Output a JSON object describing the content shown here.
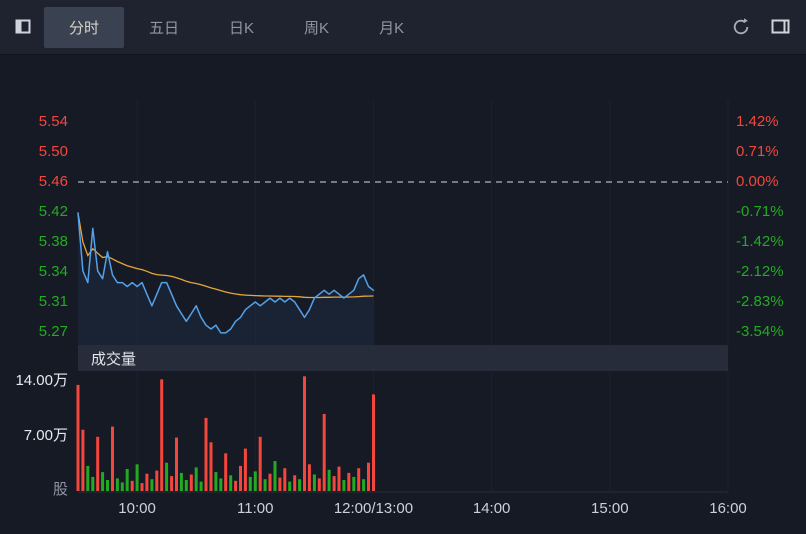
{
  "toolbar": {
    "tabs": [
      {
        "label": "分时",
        "active": true
      },
      {
        "label": "五日",
        "active": false
      },
      {
        "label": "日K",
        "active": false
      },
      {
        "label": "周K",
        "active": false
      },
      {
        "label": "月K",
        "active": false
      }
    ]
  },
  "volume_panel": {
    "title": "成交量"
  },
  "colors": {
    "up": "#f5463d",
    "down": "#22ab22",
    "price_line": "#54a1ea",
    "avg_line": "#e7a53a",
    "zero_dash": "#d9dbde",
    "volume_label": "#e6e9ee",
    "share_label": "#8e95a2",
    "time_label": "#ccd1d9"
  },
  "chart_data": {
    "type": "line",
    "subtype": "intraday-price-with-volume",
    "prev_close": 5.46,
    "total_minutes": 330,
    "minute_step": 2.5,
    "price_axis": [
      {
        "label": "5.54",
        "pct": "1.42%",
        "tone": "up"
      },
      {
        "label": "5.50",
        "pct": "0.71%",
        "tone": "up"
      },
      {
        "label": "5.46",
        "pct": "0.00%",
        "tone": "up"
      },
      {
        "label": "5.42",
        "pct": "-0.71%",
        "tone": "down"
      },
      {
        "label": "5.38",
        "pct": "-1.42%",
        "tone": "down"
      },
      {
        "label": "5.34",
        "pct": "-2.12%",
        "tone": "down"
      },
      {
        "label": "5.31",
        "pct": "-2.83%",
        "tone": "down"
      },
      {
        "label": "5.27",
        "pct": "-3.54%",
        "tone": "down"
      }
    ],
    "volume_axis": [
      {
        "label": "14.00万",
        "value": 14
      },
      {
        "label": "7.00万",
        "value": 7
      },
      {
        "label": "股",
        "value": 0
      }
    ],
    "time_axis": [
      {
        "label": "10:00",
        "minute": 30
      },
      {
        "label": "11:00",
        "minute": 90
      },
      {
        "label": "12:00/13:00",
        "minute": 150
      },
      {
        "label": "14:00",
        "minute": 210
      },
      {
        "label": "15:00",
        "minute": 270
      },
      {
        "label": "16:00",
        "minute": 330
      }
    ],
    "prices": [
      5.42,
      5.345,
      5.33,
      5.4,
      5.345,
      5.335,
      5.37,
      5.34,
      5.33,
      5.33,
      5.325,
      5.33,
      5.325,
      5.33,
      5.315,
      5.3,
      5.315,
      5.33,
      5.33,
      5.315,
      5.3,
      5.29,
      5.28,
      5.29,
      5.3,
      5.285,
      5.275,
      5.27,
      5.275,
      5.265,
      5.265,
      5.27,
      5.28,
      5.285,
      5.295,
      5.3,
      5.305,
      5.3,
      5.305,
      5.31,
      5.305,
      5.31,
      5.305,
      5.31,
      5.305,
      5.295,
      5.285,
      5.295,
      5.31,
      5.315,
      5.32,
      5.315,
      5.32,
      5.315,
      5.31,
      5.315,
      5.32,
      5.335,
      5.34,
      5.325,
      5.32
    ],
    "volumes": [
      13.5,
      7.8,
      3.2,
      1.8,
      6.9,
      2.4,
      1.4,
      8.2,
      1.6,
      1.1,
      2.8,
      1.3,
      3.4,
      1.0,
      2.2,
      1.5,
      2.6,
      14.2,
      3.6,
      1.9,
      6.8,
      2.3,
      1.4,
      2.1,
      3.0,
      1.2,
      9.3,
      6.2,
      2.4,
      1.6,
      4.8,
      2.0,
      1.3,
      3.2,
      5.4,
      1.8,
      2.5,
      6.9,
      1.5,
      2.2,
      3.8,
      1.7,
      2.9,
      1.2,
      2.0,
      1.5,
      14.6,
      3.4,
      2.1,
      1.6,
      9.8,
      2.7,
      1.9,
      3.1,
      1.4,
      2.3,
      1.8,
      2.9,
      1.5,
      3.6,
      12.3
    ],
    "volume_dirs": [
      "u",
      "u",
      "d",
      "d",
      "u",
      "d",
      "d",
      "u",
      "d",
      "d",
      "d",
      "u",
      "d",
      "u",
      "u",
      "d",
      "u",
      "u",
      "d",
      "u",
      "u",
      "d",
      "d",
      "u",
      "d",
      "d",
      "u",
      "u",
      "d",
      "d",
      "u",
      "d",
      "u",
      "u",
      "u",
      "d",
      "d",
      "u",
      "d",
      "u",
      "d",
      "u",
      "u",
      "d",
      "u",
      "d",
      "u",
      "u",
      "d",
      "u",
      "u",
      "d",
      "u",
      "u",
      "d",
      "u",
      "d",
      "u",
      "d",
      "u",
      "u"
    ]
  }
}
